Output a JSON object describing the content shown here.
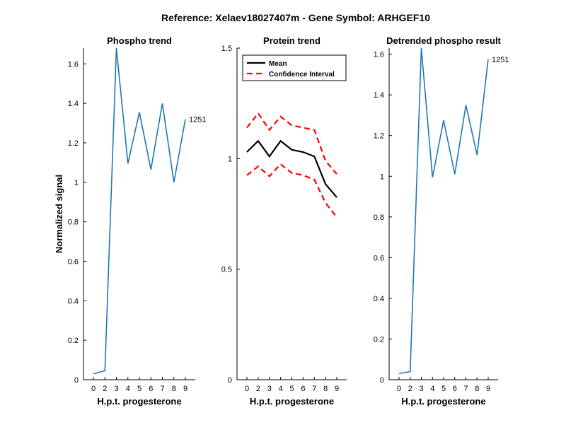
{
  "figure": {
    "suptitle": "Reference:  Xelaev18027407m - Gene Symbol:  ARHGEF10"
  },
  "colors": {
    "phospho_line": "#1f77b4",
    "mean_line": "#000000",
    "ci_line": "#ff0000"
  },
  "chart_data": [
    {
      "id": "phospho",
      "type": "line",
      "title": "Phospho trend",
      "xlabel": "H.p.t. progesterone",
      "ylabel": "Normalized signal",
      "x_tick_labels": [
        "0",
        "2",
        "3",
        "4",
        "5",
        "6",
        "7",
        "8",
        "9"
      ],
      "y_ticks": [
        0,
        0.2,
        0.4,
        0.6,
        0.8,
        1,
        1.2,
        1.4,
        1.6
      ],
      "y_tick_labels": [
        "0",
        "0.2",
        "0.4",
        "0.6",
        "0.8",
        "1",
        "1.2",
        "1.4",
        "1.6"
      ],
      "ylim": [
        0,
        1.68
      ],
      "series": [
        {
          "values": [
            0.03,
            0.045,
            1.68,
            1.095,
            1.355,
            1.065,
            1.4,
            1.0,
            1.32
          ],
          "end_label": "1251",
          "color": "#1f77b4",
          "style": "solid"
        }
      ]
    },
    {
      "id": "protein",
      "type": "line",
      "title": "Protein trend",
      "xlabel": "H.p.t. progesterone",
      "ylabel": "",
      "x_tick_labels": [
        "0",
        "2",
        "3",
        "4",
        "5",
        "6",
        "7",
        "8",
        "9"
      ],
      "y_ticks": [
        0,
        0.5,
        1,
        1.5
      ],
      "y_tick_labels": [
        "0",
        "0.5",
        "1",
        "1.5"
      ],
      "ylim": [
        0,
        1.5
      ],
      "legend": {
        "position": "top-left",
        "entries": [
          "Mean",
          "Confidence Interval"
        ]
      },
      "series": [
        {
          "name": "Mean",
          "values": [
            1.03,
            1.08,
            1.01,
            1.08,
            1.04,
            1.03,
            1.01,
            0.885,
            0.825
          ],
          "color": "#000000",
          "style": "solid"
        },
        {
          "name": "Confidence Interval",
          "values": [
            1.14,
            1.205,
            1.13,
            1.19,
            1.15,
            1.14,
            1.13,
            0.99,
            0.93
          ],
          "color": "#ff0000",
          "style": "dashed"
        },
        {
          "name": "Confidence Interval",
          "values": [
            0.925,
            0.965,
            0.92,
            0.975,
            0.935,
            0.925,
            0.905,
            0.8,
            0.735
          ],
          "color": "#ff0000",
          "style": "dashed"
        }
      ]
    },
    {
      "id": "detrended",
      "type": "line",
      "title": "Detrended phospho result",
      "xlabel": "H.p.t. progesterone",
      "ylabel": "",
      "x_tick_labels": [
        "0",
        "2",
        "3",
        "4",
        "5",
        "6",
        "7",
        "8",
        "9"
      ],
      "y_ticks": [
        0,
        0.2,
        0.4,
        0.6,
        0.8,
        1,
        1.2,
        1.4,
        1.6
      ],
      "y_tick_labels": [
        "0",
        "0.2",
        "0.4",
        "0.6",
        "0.8",
        "1",
        "1.2",
        "1.4",
        "1.6"
      ],
      "ylim": [
        0,
        1.63
      ],
      "series": [
        {
          "values": [
            0.03,
            0.04,
            1.63,
            0.995,
            1.275,
            1.01,
            1.35,
            1.105,
            1.575
          ],
          "end_label": "1251",
          "color": "#1f77b4",
          "style": "solid"
        }
      ]
    }
  ]
}
